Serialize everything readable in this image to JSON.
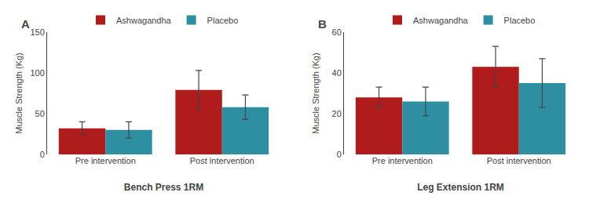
{
  "chart_data": [
    {
      "type": "bar",
      "title": "A",
      "xlabel": "Bench Press 1RM",
      "ylabel": "Muscle Strength (Kg)",
      "categories": [
        "Pre intervention",
        "Post intervention"
      ],
      "series": [
        {
          "name": "Ashwagandha",
          "color": "#b01c1c",
          "values": [
            32,
            79
          ],
          "errors": [
            8,
            24
          ]
        },
        {
          "name": "Placebo",
          "color": "#2e8fa3",
          "values": [
            30,
            58
          ],
          "errors": [
            10,
            15
          ]
        }
      ],
      "ylim": [
        0,
        150
      ],
      "yticks": [
        0,
        50,
        100,
        150
      ],
      "grid": false,
      "legend": "upper center"
    },
    {
      "type": "bar",
      "title": "B",
      "xlabel": "Leg Extension 1RM",
      "ylabel": "Muscle Strength (Kg)",
      "categories": [
        "Pre intervention",
        "Post intervention"
      ],
      "series": [
        {
          "name": "Ashwagandha",
          "color": "#b01c1c",
          "values": [
            28,
            43
          ],
          "errors": [
            5,
            10
          ]
        },
        {
          "name": "Placebo",
          "color": "#2e8fa3",
          "values": [
            26,
            35
          ],
          "errors": [
            7,
            12
          ]
        }
      ],
      "ylim": [
        0,
        60
      ],
      "yticks": [
        0,
        20,
        40,
        60
      ],
      "grid": false,
      "legend": "upper center"
    }
  ]
}
